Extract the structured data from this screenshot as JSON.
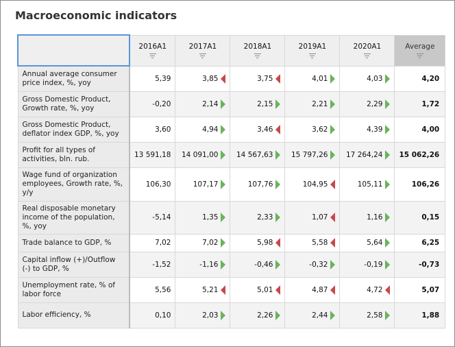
{
  "title": "Macroeconomic indicators",
  "columns": [
    "2016A1",
    "2017A1",
    "2018A1",
    "2019A1",
    "2020A1",
    "Average"
  ],
  "colors": {
    "up": "#6ab35a",
    "down": "#c8484a"
  },
  "rows": [
    {
      "label": "Annual average consumer price index, %, yoy",
      "values": [
        "5,39",
        "3,85",
        "3,75",
        "4,01",
        "4,03"
      ],
      "trend": [
        null,
        "down",
        "down",
        "up",
        "up"
      ],
      "average": "4,20"
    },
    {
      "label": "Gross Domestic Product, Growth rate, %, yoy",
      "values": [
        "-0,20",
        "2,14",
        "2,15",
        "2,21",
        "2,29"
      ],
      "trend": [
        null,
        "up",
        "up",
        "up",
        "up"
      ],
      "average": "1,72"
    },
    {
      "label": "Gross Domestic Product, deflator index GDP, %, yoy",
      "values": [
        "3,60",
        "4,94",
        "3,46",
        "3,62",
        "4,39"
      ],
      "trend": [
        null,
        "up",
        "down",
        "up",
        "up"
      ],
      "average": "4,00"
    },
    {
      "label": "Profit for all types of activities, bln. rub.",
      "values": [
        "13 591,18",
        "14 091,00",
        "14 567,63",
        "15 797,26",
        "17 264,24"
      ],
      "trend": [
        null,
        "up",
        "up",
        "up",
        "up"
      ],
      "average": "15 062,26"
    },
    {
      "label": "Wage fund of organization employees, Growth rate, %, y/y",
      "values": [
        "106,30",
        "107,17",
        "107,76",
        "104,95",
        "105,11"
      ],
      "trend": [
        null,
        "up",
        "up",
        "down",
        "up"
      ],
      "average": "106,26"
    },
    {
      "label": "Real disposable monetary income of the population, %, yoy",
      "values": [
        "-5,14",
        "1,35",
        "2,33",
        "1,07",
        "1,16"
      ],
      "trend": [
        null,
        "up",
        "up",
        "down",
        "up"
      ],
      "average": "0,15"
    },
    {
      "label": "Trade balance to GDP, %",
      "values": [
        "7,02",
        "7,02",
        "5,98",
        "5,58",
        "5,64"
      ],
      "trend": [
        null,
        "up",
        "down",
        "down",
        "up"
      ],
      "average": "6,25"
    },
    {
      "label": "Capital inflow (+)/Outflow (-) to GDP, %",
      "values": [
        "-1,52",
        "-1,16",
        "-0,46",
        "-0,32",
        "-0,19"
      ],
      "trend": [
        null,
        "up",
        "up",
        "up",
        "up"
      ],
      "average": "-0,73"
    },
    {
      "label": "Unemployment rate, % of labor force",
      "values": [
        "5,56",
        "5,21",
        "5,01",
        "4,87",
        "4,72"
      ],
      "trend": [
        null,
        "down",
        "down",
        "down",
        "down"
      ],
      "average": "5,07"
    },
    {
      "label": "Labor efficiency, %",
      "values": [
        "0,10",
        "2,03",
        "2,26",
        "2,44",
        "2,58"
      ],
      "trend": [
        null,
        "up",
        "up",
        "up",
        "up"
      ],
      "average": "1,88"
    }
  ]
}
